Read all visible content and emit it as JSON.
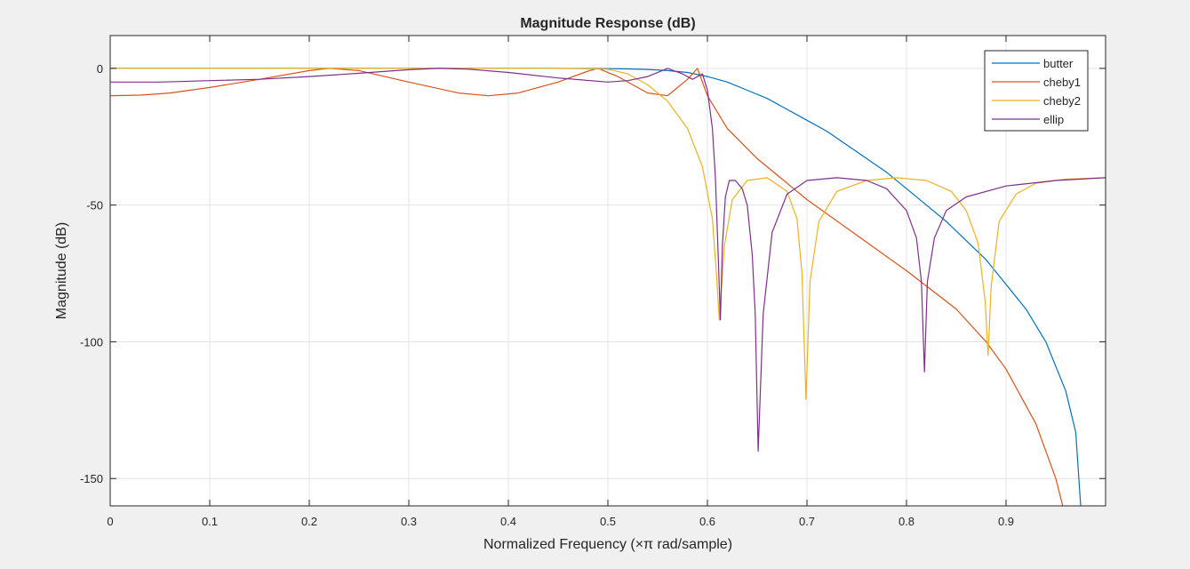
{
  "chart_data": {
    "type": "line",
    "title": "Magnitude Response (dB)",
    "xlabel": "Normalized Frequency (×π rad/sample)",
    "ylabel": "Magnitude (dB)",
    "xlim": [
      0,
      1.0
    ],
    "ylim": [
      -160,
      12
    ],
    "xticks": [
      0,
      0.1,
      0.2,
      0.3,
      0.4,
      0.5,
      0.6,
      0.7,
      0.8,
      0.9
    ],
    "xtick_labels": [
      "0",
      "0.1",
      "0.2",
      "0.3",
      "0.4",
      "0.5",
      "0.6",
      "0.7",
      "0.8",
      "0.9"
    ],
    "yticks": [
      0,
      -50,
      -100,
      -150
    ],
    "ytick_labels": [
      "0",
      "-50",
      "-100",
      "-150"
    ],
    "grid": true,
    "legend_position": "top-right",
    "colors": {
      "background": "#f0f0f0",
      "axes_background": "#ffffff",
      "grid": "#e3e3e3",
      "axis": "#262626"
    },
    "series": [
      {
        "name": "butter",
        "color": "#0072BD",
        "x": [
          0,
          0.1,
          0.2,
          0.3,
          0.4,
          0.45,
          0.5,
          0.52,
          0.54,
          0.56,
          0.58,
          0.6,
          0.62,
          0.64,
          0.66,
          0.68,
          0.7,
          0.72,
          0.74,
          0.76,
          0.78,
          0.8,
          0.82,
          0.84,
          0.86,
          0.88,
          0.9,
          0.92,
          0.94,
          0.96,
          0.97,
          0.975
        ],
        "y": [
          0,
          0,
          0,
          0,
          0,
          0,
          -0.1,
          -0.2,
          -0.4,
          -0.8,
          -1.5,
          -3,
          -5,
          -8,
          -11,
          -15,
          -19,
          -23,
          -28,
          -33,
          -38,
          -44,
          -50,
          -56,
          -63,
          -70,
          -79,
          -88,
          -100,
          -118,
          -133,
          -160
        ]
      },
      {
        "name": "cheby1",
        "color": "#D95319",
        "x": [
          0,
          0.03,
          0.06,
          0.1,
          0.15,
          0.2,
          0.22,
          0.25,
          0.3,
          0.35,
          0.38,
          0.41,
          0.45,
          0.48,
          0.49,
          0.51,
          0.54,
          0.56,
          0.58,
          0.59,
          0.6,
          0.62,
          0.65,
          0.7,
          0.75,
          0.8,
          0.85,
          0.88,
          0.9,
          0.93,
          0.95,
          0.957
        ],
        "y": [
          -10,
          -9.8,
          -9,
          -7,
          -4,
          -0.8,
          0,
          -0.8,
          -5,
          -9,
          -10,
          -9,
          -5,
          -1,
          0,
          -3,
          -9,
          -10,
          -4,
          0,
          -10,
          -22,
          -33,
          -48,
          -61,
          -74,
          -88,
          -100,
          -110,
          -130,
          -150,
          -160
        ]
      },
      {
        "name": "cheby2",
        "color": "#EDB120",
        "x": [
          0,
          0.1,
          0.2,
          0.3,
          0.4,
          0.45,
          0.5,
          0.52,
          0.54,
          0.56,
          0.58,
          0.595,
          0.605,
          0.609,
          0.612,
          0.617,
          0.625,
          0.64,
          0.66,
          0.68,
          0.69,
          0.695,
          0.699,
          0.703,
          0.712,
          0.73,
          0.76,
          0.79,
          0.82,
          0.845,
          0.86,
          0.872,
          0.879,
          0.882,
          0.885,
          0.893,
          0.91,
          0.93,
          0.96,
          1.0
        ],
        "y": [
          0,
          0,
          0,
          0,
          0,
          0,
          -0.3,
          -2,
          -6,
          -12,
          -22,
          -36,
          -55,
          -75,
          -92,
          -65,
          -48,
          -41,
          -40,
          -45,
          -55,
          -75,
          -121,
          -78,
          -56,
          -45,
          -41,
          -40,
          -41,
          -45,
          -52,
          -64,
          -85,
          -105,
          -80,
          -56,
          -46,
          -42,
          -40.5,
          -40
        ]
      },
      {
        "name": "ellip",
        "color": "#7E2F8E",
        "x": [
          0,
          0.05,
          0.1,
          0.15,
          0.2,
          0.25,
          0.3,
          0.33,
          0.36,
          0.4,
          0.45,
          0.5,
          0.52,
          0.54,
          0.56,
          0.575,
          0.585,
          0.595,
          0.6,
          0.605,
          0.608,
          0.611,
          0.613,
          0.615,
          0.618,
          0.622,
          0.628,
          0.635,
          0.64,
          0.645,
          0.648,
          0.651,
          0.656,
          0.665,
          0.68,
          0.7,
          0.73,
          0.76,
          0.78,
          0.8,
          0.81,
          0.815,
          0.818,
          0.821,
          0.828,
          0.84,
          0.86,
          0.9,
          0.95,
          1.0
        ],
        "y": [
          -5,
          -5,
          -4.5,
          -4,
          -3,
          -1.8,
          -0.5,
          0,
          -0.3,
          -1.5,
          -3.5,
          -5,
          -4.5,
          -3,
          0,
          -2,
          -4,
          -2,
          -8,
          -22,
          -40,
          -70,
          -92,
          -65,
          -47,
          -41,
          -41,
          -44,
          -50,
          -68,
          -90,
          -140,
          -90,
          -60,
          -46,
          -41,
          -40,
          -41,
          -44,
          -52,
          -62,
          -78,
          -111,
          -78,
          -62,
          -52,
          -47,
          -43,
          -41,
          -40
        ]
      }
    ]
  }
}
